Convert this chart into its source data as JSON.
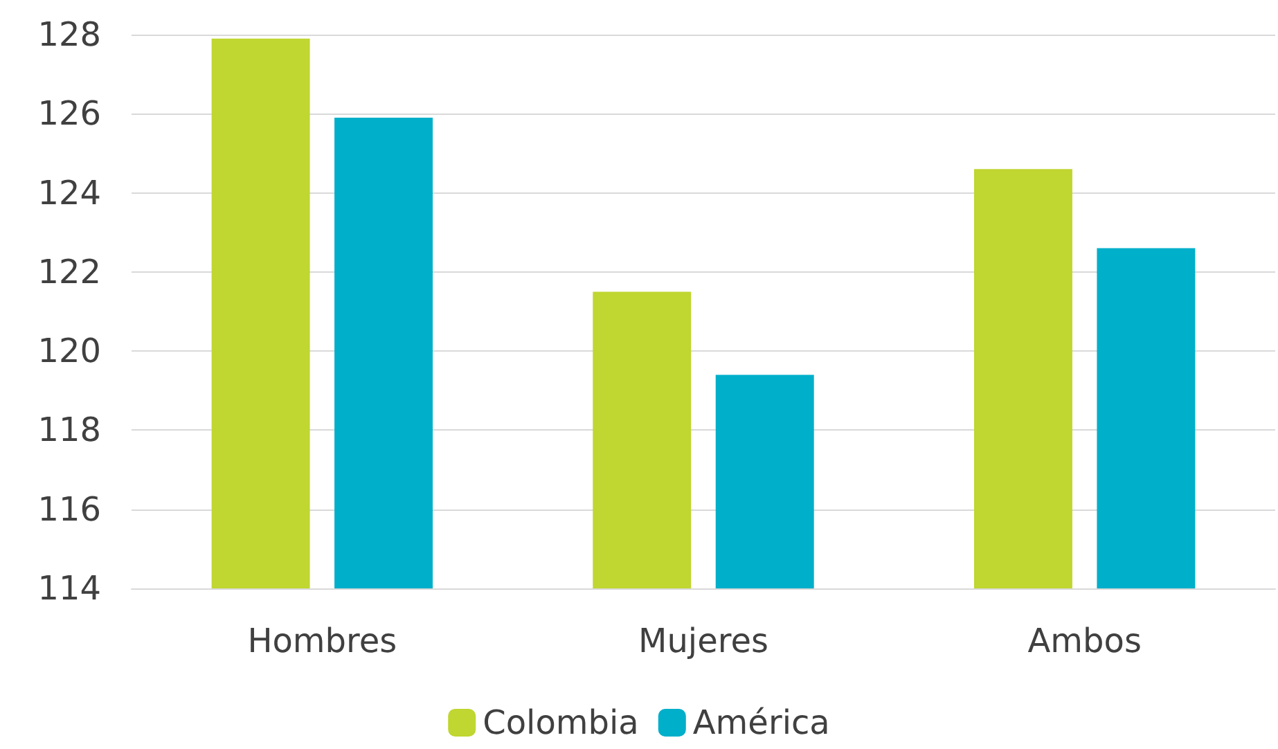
{
  "chart_data": {
    "type": "bar",
    "categories": [
      "Hombres",
      "Mujeres",
      "Ambos"
    ],
    "series": [
      {
        "name": "Colombia",
        "color": "#c0d631",
        "values": [
          127.9,
          121.5,
          124.6
        ]
      },
      {
        "name": "América",
        "color": "#00afca",
        "values": [
          125.9,
          119.4,
          122.6
        ]
      }
    ],
    "ylim": [
      114,
      128
    ],
    "yticks": [
      114,
      116,
      118,
      120,
      122,
      124,
      126,
      128
    ],
    "grid": "y",
    "legend": "bottom"
  }
}
